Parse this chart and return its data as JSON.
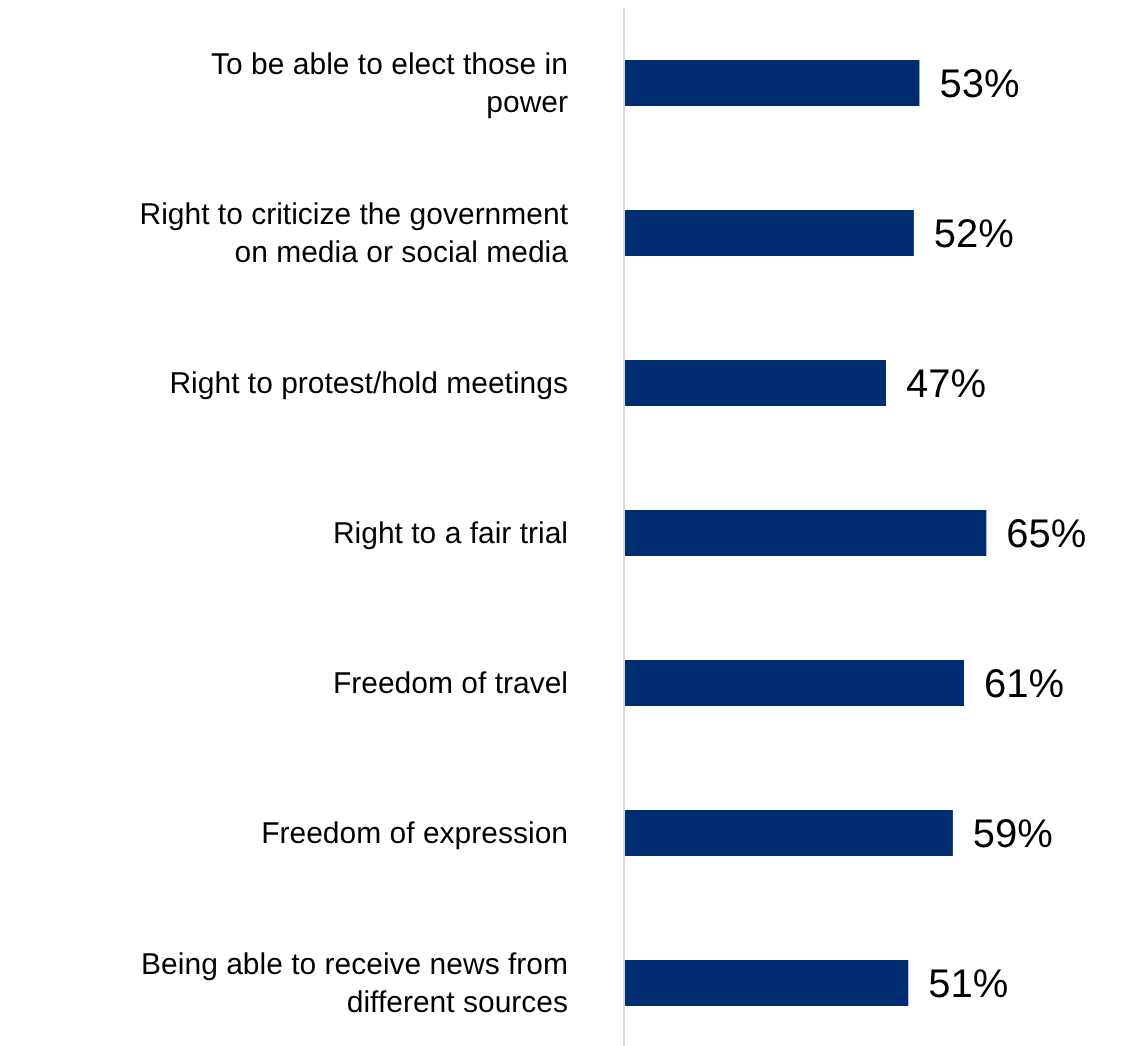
{
  "chart_data": {
    "type": "bar",
    "orientation": "horizontal",
    "categories": [
      "To be able to elect those in power",
      "Right to criticize the government on media or social media",
      "Right to protest/hold meetings",
      "Right to a fair trial",
      "Freedom of travel",
      "Freedom of expression",
      "Being able to receive news from different sources"
    ],
    "values": [
      53,
      52,
      47,
      65,
      61,
      59,
      51
    ],
    "value_labels": [
      "53%",
      "52%",
      "47%",
      "65%",
      "61%",
      "59%",
      "51%"
    ],
    "color": "#002d72",
    "tick_labels": "y"
  }
}
